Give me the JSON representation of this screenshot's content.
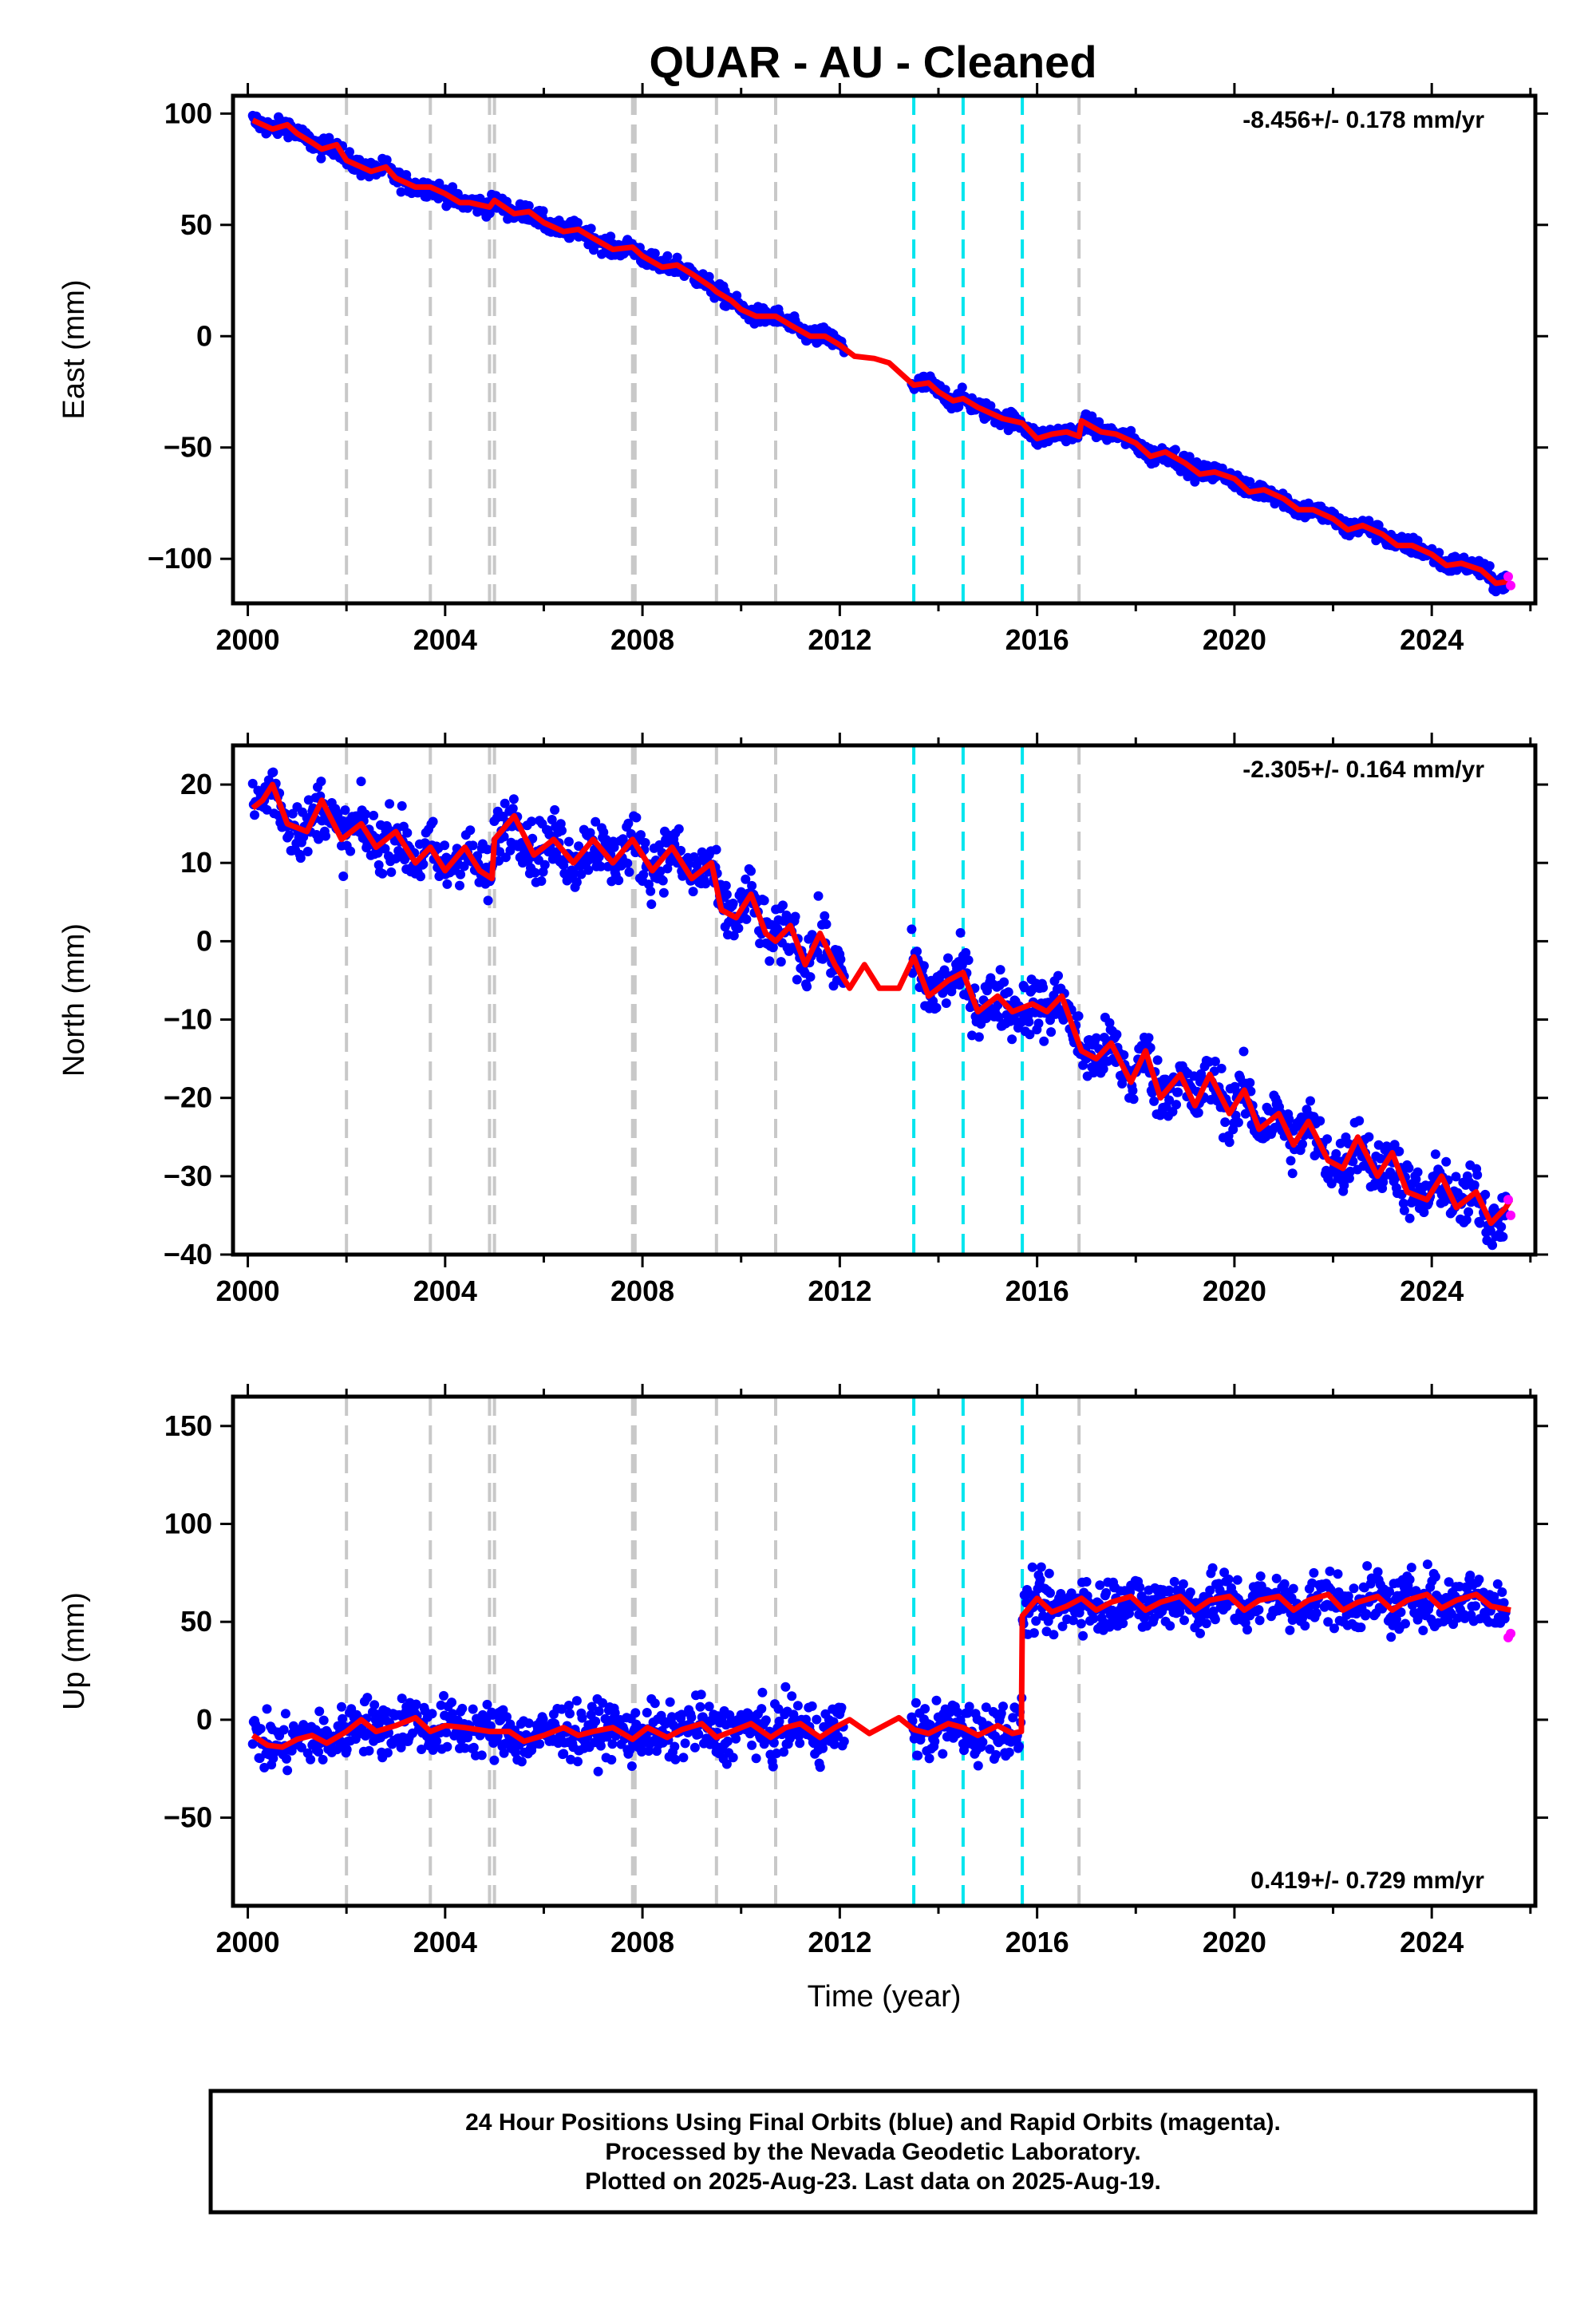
{
  "title": "QUAR  - AU - Cleaned",
  "colors": {
    "final_points": "#0000ff",
    "rapid_points": "#ff00ff",
    "model_line": "#ff0000",
    "equipment_change": "#c8c8c8",
    "earthquake": "#00e5ee"
  },
  "footer": {
    "line1": "24 Hour Positions Using Final Orbits (blue) and Rapid Orbits (magenta).",
    "line2": "Processed by the Nevada Geodetic Laboratory.",
    "line3": "Plotted on 2025-Aug-23. Last data on 2025-Aug-19."
  },
  "chart_data": [
    {
      "type": "scatter",
      "component": "east",
      "ylabel": "East (mm)",
      "xlabel": "",
      "rate_text": "-8.456+/- 0.178 mm/yr",
      "rate_position": "top-right",
      "xlim": [
        1999.7,
        2026.1
      ],
      "ylim": [
        -120,
        108
      ],
      "xticks": [
        2000,
        2004,
        2008,
        2012,
        2016,
        2020,
        2024
      ],
      "yticks": [
        -100,
        -50,
        0,
        50,
        100
      ],
      "ytick_labels": [
        "−100",
        "−50",
        "0",
        "50",
        "100"
      ],
      "gray_lines": [
        2002.0,
        2003.7,
        2004.9,
        2005.0,
        2007.8,
        2007.85,
        2009.5,
        2010.7,
        2016.85
      ],
      "cyan_lines": [
        2013.5,
        2014.5,
        2015.7
      ],
      "series": [
        {
          "name": "model",
          "x": [
            2000.1,
            2000.5,
            2000.8,
            2001.0,
            2001.3,
            2001.5,
            2001.8,
            2002.0,
            2002.5,
            2002.8,
            2003.0,
            2003.4,
            2003.7,
            2004.0,
            2004.3,
            2004.5,
            2004.9,
            2005.0,
            2005.4,
            2005.7,
            2006.0,
            2006.4,
            2006.7,
            2007.0,
            2007.4,
            2007.8,
            2008.0,
            2008.4,
            2008.7,
            2009.0,
            2009.4,
            2009.5,
            2009.8,
            2010.0,
            2010.3,
            2010.7,
            2011.0,
            2011.4,
            2011.7,
            2012.0,
            2012.3,
            2012.7,
            2013.0,
            2013.3,
            2013.5,
            2013.8,
            2014.0,
            2014.3,
            2014.5,
            2014.8,
            2015.0,
            2015.3,
            2015.7,
            2016.0,
            2016.3,
            2016.6,
            2016.85,
            2016.9,
            2017.3,
            2017.6,
            2018.0,
            2018.3,
            2018.6,
            2019.0,
            2019.3,
            2019.6,
            2020.0,
            2020.3,
            2020.6,
            2021.0,
            2021.3,
            2021.6,
            2022.0,
            2022.3,
            2022.6,
            2023.0,
            2023.3,
            2023.6,
            2024.0,
            2024.3,
            2024.6,
            2025.0,
            2025.3,
            2025.6
          ],
          "y": [
            97,
            93,
            95,
            91,
            87,
            84,
            86,
            79,
            74,
            76,
            71,
            67,
            67,
            64,
            60,
            60,
            58,
            61,
            55,
            56,
            51,
            47,
            48,
            44,
            39,
            40,
            36,
            31,
            32,
            28,
            22,
            20,
            16,
            12,
            9,
            9,
            5,
            0,
            0,
            -4,
            -9,
            -10,
            -12,
            -18,
            -22,
            -21,
            -25,
            -29,
            -28,
            -32,
            -34,
            -37,
            -39,
            -46,
            -44,
            -43,
            -45,
            -38,
            -43,
            -44,
            -48,
            -54,
            -52,
            -57,
            -62,
            -61,
            -64,
            -70,
            -69,
            -73,
            -78,
            -78,
            -82,
            -87,
            -85,
            -89,
            -94,
            -94,
            -98,
            -103,
            -102,
            -105,
            -111,
            -110
          ]
        },
        {
          "name": "rapid",
          "x": [
            2025.55,
            2025.6
          ],
          "y": [
            -108,
            -112
          ]
        }
      ]
    },
    {
      "type": "scatter",
      "component": "north",
      "ylabel": "North (mm)",
      "xlabel": "",
      "rate_text": "-2.305+/- 0.164 mm/yr",
      "rate_position": "top-right",
      "xlim": [
        1999.7,
        2026.1
      ],
      "ylim": [
        -40,
        25
      ],
      "xticks": [
        2000,
        2004,
        2008,
        2012,
        2016,
        2020,
        2024
      ],
      "yticks": [
        -40,
        -30,
        -20,
        -10,
        0,
        10,
        20
      ],
      "ytick_labels": [
        "−40",
        "−30",
        "−20",
        "−10",
        "0",
        "10",
        "20"
      ],
      "gray_lines": [
        2002.0,
        2003.7,
        2004.9,
        2005.0,
        2007.8,
        2007.85,
        2009.5,
        2010.7,
        2016.85
      ],
      "cyan_lines": [
        2013.5,
        2014.5,
        2015.7
      ],
      "series": [
        {
          "name": "model",
          "x": [
            2000.1,
            2000.3,
            2000.5,
            2000.8,
            2001.2,
            2001.5,
            2001.9,
            2002.3,
            2002.6,
            2003.0,
            2003.4,
            2003.7,
            2004.0,
            2004.4,
            2004.7,
            2004.95,
            2005.0,
            2005.4,
            2005.8,
            2006.2,
            2006.6,
            2007.0,
            2007.4,
            2007.8,
            2008.2,
            2008.6,
            2009.0,
            2009.4,
            2009.6,
            2009.9,
            2010.2,
            2010.5,
            2010.7,
            2011.0,
            2011.3,
            2011.6,
            2011.9,
            2012.2,
            2012.5,
            2012.8,
            2013.2,
            2013.5,
            2013.8,
            2014.2,
            2014.5,
            2014.8,
            2015.2,
            2015.5,
            2015.9,
            2016.2,
            2016.5,
            2016.9,
            2017.2,
            2017.5,
            2017.9,
            2018.2,
            2018.5,
            2018.9,
            2019.2,
            2019.5,
            2019.9,
            2020.2,
            2020.5,
            2020.9,
            2021.2,
            2021.5,
            2021.9,
            2022.2,
            2022.5,
            2022.9,
            2023.2,
            2023.5,
            2023.9,
            2024.2,
            2024.5,
            2024.9,
            2025.2,
            2025.5,
            2025.6
          ],
          "y": [
            17,
            18,
            20,
            15,
            14,
            18,
            13,
            15,
            12,
            14,
            10,
            12,
            9,
            12,
            9,
            8,
            13,
            16,
            11,
            13,
            10,
            13,
            10,
            13,
            9,
            12,
            8,
            10,
            4,
            3,
            6,
            1,
            0,
            2,
            -3,
            1,
            -3,
            -6,
            -3,
            -6,
            -6,
            -2,
            -7,
            -5,
            -4,
            -9,
            -7,
            -9,
            -8,
            -9,
            -7,
            -14,
            -15,
            -13,
            -18,
            -14,
            -20,
            -17,
            -21,
            -17,
            -22,
            -19,
            -24,
            -22,
            -26,
            -23,
            -28,
            -29,
            -25,
            -30,
            -27,
            -32,
            -33,
            -30,
            -34,
            -32,
            -36,
            -34,
            -33
          ]
        },
        {
          "name": "rapid",
          "x": [
            2025.55,
            2025.6
          ],
          "y": [
            -33,
            -35
          ]
        }
      ]
    },
    {
      "type": "scatter",
      "component": "up",
      "ylabel": "Up (mm)",
      "xlabel": "Time (year)",
      "rate_text": "0.419+/- 0.729 mm/yr",
      "rate_position": "bottom-right",
      "xlim": [
        1999.7,
        2026.1
      ],
      "ylim": [
        -95,
        165
      ],
      "xticks": [
        2000,
        2004,
        2008,
        2012,
        2016,
        2020,
        2024
      ],
      "yticks": [
        -50,
        0,
        50,
        100,
        150
      ],
      "ytick_labels": [
        "−50",
        "0",
        "50",
        "100",
        "150"
      ],
      "gray_lines": [
        2002.0,
        2003.7,
        2004.9,
        2005.0,
        2007.8,
        2007.85,
        2009.5,
        2010.7,
        2016.85
      ],
      "cyan_lines": [
        2013.5,
        2014.5,
        2015.7
      ],
      "series": [
        {
          "name": "model",
          "x": [
            2000.1,
            2000.4,
            2000.7,
            2001.0,
            2001.3,
            2001.6,
            2002.0,
            2002.3,
            2002.6,
            2003.0,
            2003.4,
            2003.7,
            2004.0,
            2004.4,
            2004.9,
            2005.3,
            2005.6,
            2006.0,
            2006.4,
            2006.7,
            2007.0,
            2007.4,
            2007.8,
            2008.1,
            2008.5,
            2008.8,
            2009.2,
            2009.5,
            2009.9,
            2010.2,
            2010.6,
            2010.9,
            2011.2,
            2011.6,
            2011.9,
            2012.2,
            2012.6,
            2012.9,
            2013.2,
            2013.5,
            2013.8,
            2014.2,
            2014.5,
            2014.8,
            2015.2,
            2015.5,
            2015.68,
            2015.7,
            2016.0,
            2016.3,
            2016.6,
            2016.9,
            2017.2,
            2017.5,
            2017.9,
            2018.2,
            2018.5,
            2018.9,
            2019.2,
            2019.5,
            2019.9,
            2020.2,
            2020.5,
            2020.9,
            2021.2,
            2021.5,
            2021.9,
            2022.2,
            2022.5,
            2022.9,
            2023.2,
            2023.5,
            2023.9,
            2024.2,
            2024.5,
            2024.9,
            2025.2,
            2025.6
          ],
          "y": [
            -8,
            -13,
            -14,
            -10,
            -8,
            -12,
            -6,
            0,
            -6,
            -3,
            1,
            -6,
            -3,
            -4,
            -6,
            -6,
            -11,
            -8,
            -4,
            -8,
            -6,
            -4,
            -10,
            -4,
            -9,
            -5,
            -2,
            -9,
            -5,
            -2,
            -9,
            -4,
            -2,
            -9,
            -4,
            0,
            -7,
            -3,
            1,
            -5,
            -7,
            -2,
            -4,
            -8,
            -3,
            -7,
            -6,
            53,
            62,
            55,
            58,
            62,
            56,
            60,
            63,
            56,
            60,
            63,
            56,
            61,
            63,
            56,
            61,
            63,
            56,
            61,
            64,
            56,
            60,
            63,
            56,
            61,
            64,
            57,
            61,
            64,
            58,
            56
          ]
        },
        {
          "name": "rapid",
          "x": [
            2025.55,
            2025.6
          ],
          "y": [
            42,
            44
          ]
        }
      ]
    }
  ]
}
